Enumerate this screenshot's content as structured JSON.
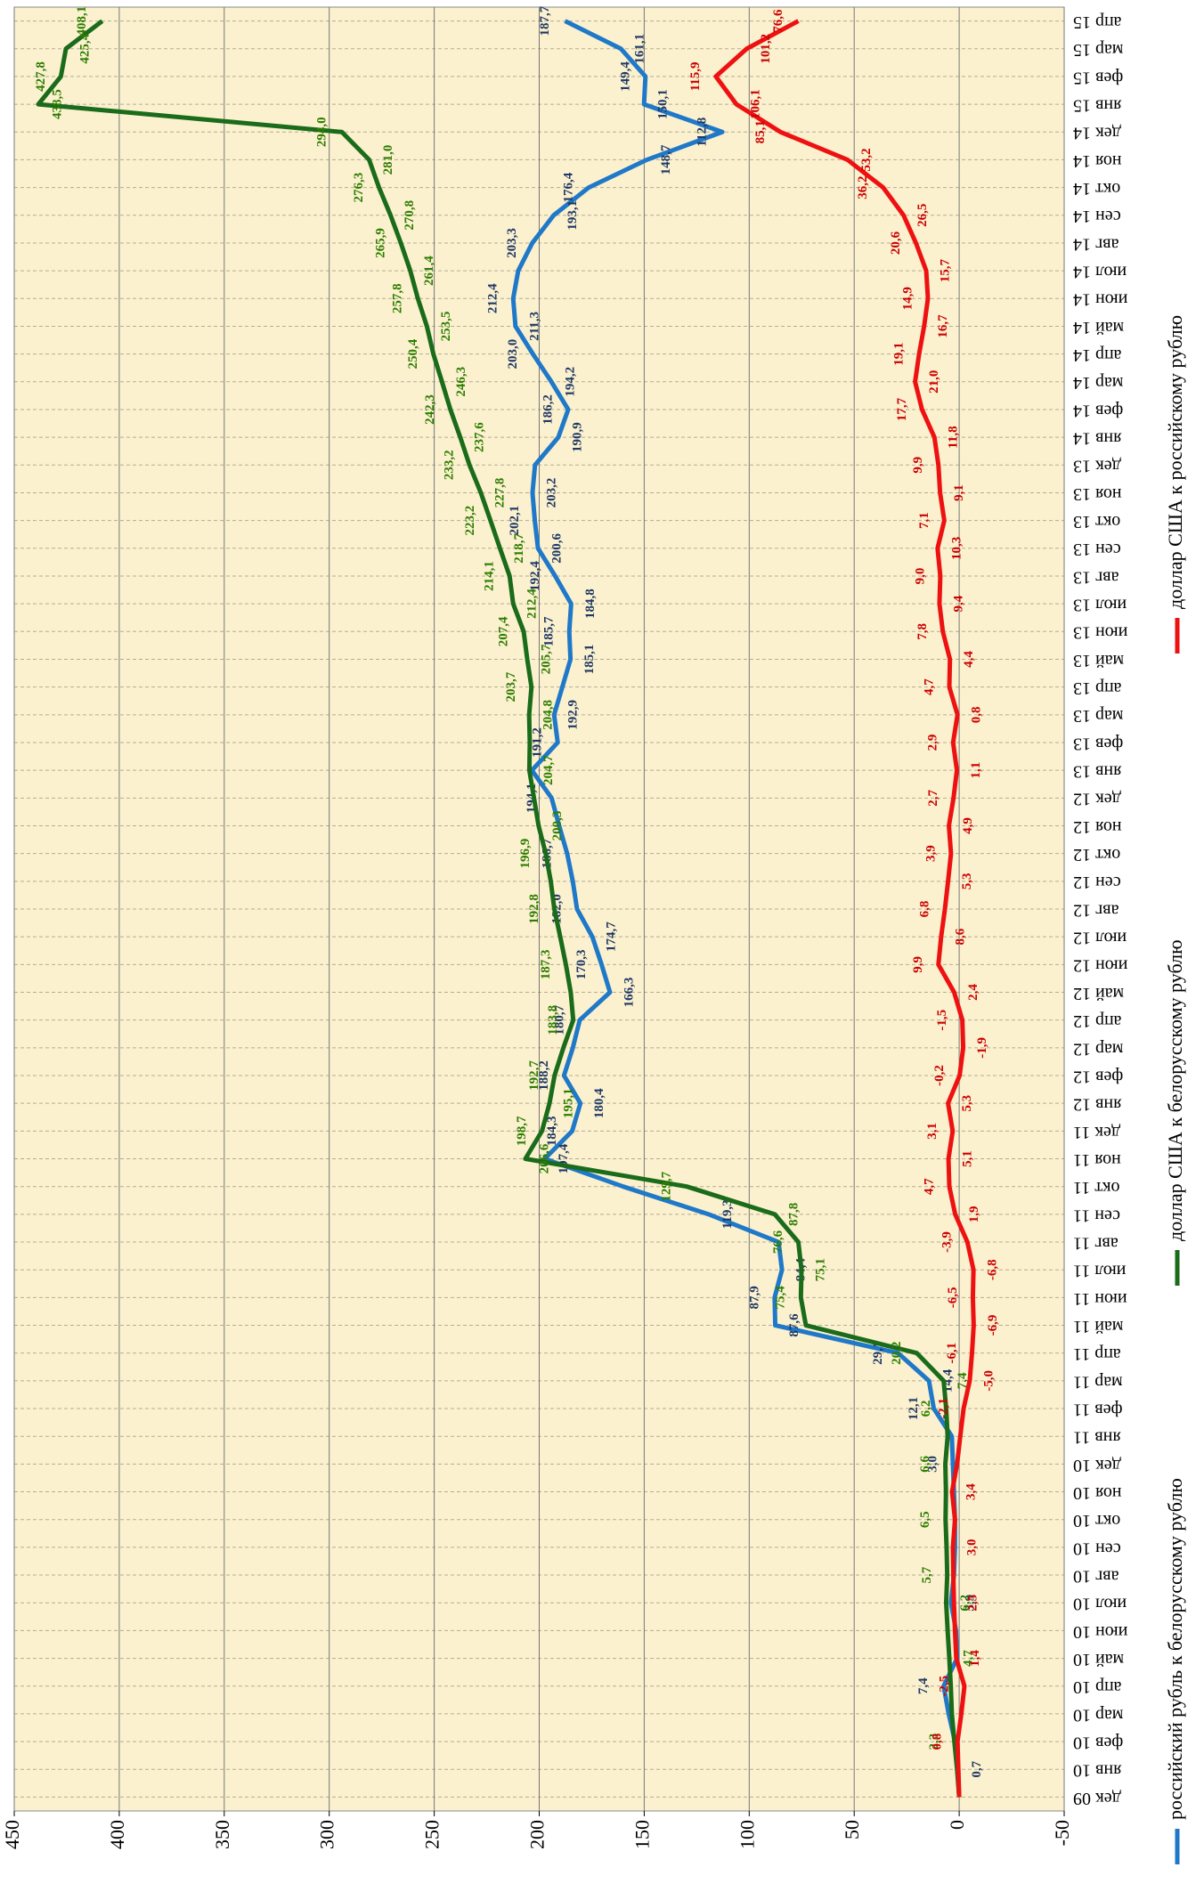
{
  "chart_data": {
    "type": "line",
    "categories": [
      "дек 09",
      "янв 10",
      "фев 10",
      "мар 10",
      "апр 10",
      "май 10",
      "июн 10",
      "июл 10",
      "авг 10",
      "сен 10",
      "окт 10",
      "ноя 10",
      "дек 10",
      "янв 11",
      "фев 11",
      "мар 11",
      "апр 11",
      "май 11",
      "июн 11",
      "июл 11",
      "авг 11",
      "сен 11",
      "окт 11",
      "ноя 11",
      "дек 11",
      "янв 12",
      "фев 12",
      "мар 12",
      "апр 12",
      "май 12",
      "июн 12",
      "июл 12",
      "авг 12",
      "сен 12",
      "окт 12",
      "ноя 12",
      "дек 12",
      "янв 13",
      "фев 13",
      "мар 13",
      "апр 13",
      "май 13",
      "июн 13",
      "июл 13",
      "авг 13",
      "сен 13",
      "окт 13",
      "ноя 13",
      "дек 13",
      "янв 14",
      "фев 14",
      "мар 14",
      "апр 14",
      "май 14",
      "июн 14",
      "июл 14",
      "авг 14",
      "сен 14",
      "окт 14",
      "ноя 14",
      "дек 14",
      "янв 15",
      "фев 15",
      "мар 15",
      "апр 15"
    ],
    "series": [
      {
        "name": "российский рубль к белорусскому рублю",
        "color": "#1f78c8",
        "label_color": "#1f3864",
        "values": [
          0,
          0.7,
          2.0,
          5.0,
          7.4,
          1.0,
          1.5,
          3.9,
          2.5,
          2.0,
          2.0,
          2.5,
          3.0,
          3.5,
          12.1,
          14.4,
          29.1,
          87.6,
          87.9,
          84.4,
          86.0,
          119.3,
          160.0,
          197.4,
          184.3,
          180.4,
          188.2,
          184.0,
          180.7,
          166.3,
          170.3,
          174.7,
          182.0,
          184.0,
          186.7,
          190.5,
          194.1,
          203.5,
          191.2,
          192.9,
          189.0,
          185.1,
          185.7,
          184.8,
          192.4,
          200.6,
          202.1,
          203.2,
          202.0,
          190.9,
          186.2,
          194.2,
          203.0,
          211.3,
          212.4,
          210.0,
          203.3,
          193.1,
          176.4,
          148.7,
          112.8,
          150.1,
          149.4,
          161.1,
          187.7
        ],
        "value_labels": [
          null,
          "0,7",
          null,
          null,
          "7,4",
          null,
          null,
          "3,9",
          null,
          null,
          null,
          null,
          "3,0",
          null,
          "12,1",
          "14,4",
          "29,1",
          "87,6",
          "87,9",
          "84,4",
          null,
          "119,3",
          null,
          "197,4",
          "184,3",
          "180,4",
          "188,2",
          null,
          "180,7",
          "166,3",
          "170,3",
          "174,7",
          "182,0",
          null,
          "186,7",
          null,
          "194,1",
          null,
          "191,2",
          "192,9",
          null,
          "185,1",
          "185,7",
          "184,8",
          "192,4",
          "200,6",
          "202,1",
          "203,2",
          null,
          "190,9",
          "186,2",
          "194,2",
          "203,0",
          "211,3",
          "212,4",
          null,
          "203,3",
          "193,1",
          "176,4",
          "148,7",
          "112,8",
          "150,1",
          "149,4",
          "161,1",
          "187,7"
        ]
      },
      {
        "name": "доллар США к белорусскому рублю",
        "color": "#1a6b1a",
        "label_color": "#2e7d00",
        "values": [
          0,
          1.0,
          2.3,
          3.5,
          4.0,
          4.7,
          5.5,
          6.2,
          5.7,
          6.0,
          6.5,
          6.3,
          6.6,
          5.5,
          6.2,
          7.4,
          20.2,
          73.0,
          75.4,
          75.1,
          76.6,
          87.8,
          129.7,
          206.6,
          198.7,
          195.1,
          192.7,
          188.5,
          183.8,
          185.0,
          187.3,
          190.0,
          192.8,
          194.5,
          196.9,
          200.3,
          202.5,
          204.7,
          204.5,
          204.8,
          203.7,
          205.7,
          207.4,
          212.4,
          214.1,
          218.7,
          223.2,
          227.8,
          233.2,
          237.6,
          242.3,
          246.3,
          250.4,
          253.5,
          257.8,
          261.4,
          265.9,
          270.8,
          276.3,
          281.0,
          294.0,
          438.5,
          427.8,
          425.4,
          408.1
        ],
        "value_labels": [
          null,
          null,
          "2,3",
          null,
          null,
          "4,7",
          null,
          "6,2",
          "5,7",
          null,
          "6,5",
          null,
          "6,6",
          null,
          "6,2",
          "7,4",
          "20,2",
          null,
          "75,4",
          "75,1",
          "76,6",
          "87,8",
          "129,7",
          "206,6",
          "198,7",
          "195,1",
          "192,7",
          null,
          "183,8",
          null,
          "187,3",
          null,
          "192,8",
          null,
          "196,9",
          "200,3",
          null,
          "204,7",
          null,
          "204,8",
          "203,7",
          "205,7",
          "207,4",
          "212,4",
          "214,1",
          "218,7",
          "223,2",
          "227,8",
          "233,2",
          "237,6",
          "242,3",
          "246,3",
          "250,4",
          "253,5",
          "257,8",
          "261,4",
          "265,9",
          "270,8",
          "276,3",
          "281,0",
          "294,0",
          "438,5",
          "427,8",
          "425,4",
          "408,1"
        ]
      },
      {
        "name": "доллар США к российскому рублю",
        "color": "#ee1111",
        "label_color": "#cc0000",
        "values": [
          0,
          0.4,
          0.8,
          -1.0,
          -2.5,
          1.4,
          2.0,
          2.5,
          2.8,
          3.0,
          2.0,
          3.4,
          1.0,
          -0.5,
          -2.1,
          -5.0,
          -6.1,
          -6.9,
          -6.5,
          -6.8,
          -3.9,
          1.9,
          4.7,
          5.1,
          3.1,
          5.3,
          -0.2,
          -1.9,
          -1.5,
          2.4,
          9.9,
          8.6,
          6.8,
          5.3,
          3.9,
          4.9,
          2.7,
          1.1,
          2.9,
          0.8,
          4.7,
          4.4,
          7.8,
          9.4,
          9.0,
          10.3,
          7.1,
          9.1,
          9.9,
          11.8,
          17.7,
          21.0,
          19.1,
          16.7,
          14.9,
          15.7,
          20.6,
          26.5,
          36.2,
          53.2,
          85.1,
          106.1,
          115.9,
          101.2,
          76.6
        ],
        "value_labels": [
          null,
          null,
          "0,8",
          null,
          "-2,5",
          "1,4",
          null,
          "2,5",
          null,
          "3,0",
          null,
          "3,4",
          null,
          null,
          "-2,1",
          "-5,0",
          "-6,1",
          "-6,9",
          "-6,5",
          "-6,8",
          "-3,9",
          "1,9",
          "4,7",
          "5,1",
          "3,1",
          "5,3",
          "-0,2",
          "-1,9",
          "-1,5",
          "2,4",
          "9,9",
          "8,6",
          "6,8",
          "5,3",
          "3,9",
          "4,9",
          "2,7",
          "1,1",
          "2,9",
          "0,8",
          "4,7",
          "4,4",
          "7,8",
          "9,4",
          "9,0",
          "10,3",
          "7,1",
          "9,1",
          "9,9",
          "11,8",
          "17,7",
          "21,0",
          "19,1",
          "16,7",
          "14,9",
          "15,7",
          "20,6",
          "26,5",
          "36,2",
          "53,2",
          "85,1",
          "106,1",
          "115,9",
          "101,2",
          "76,6"
        ]
      }
    ],
    "ylim": [
      -50,
      450
    ],
    "yticks": [
      -50,
      0,
      50,
      100,
      150,
      200,
      250,
      300,
      350,
      400,
      450
    ],
    "grid": true,
    "background": "#fbf1cf",
    "legend": "bottom"
  }
}
